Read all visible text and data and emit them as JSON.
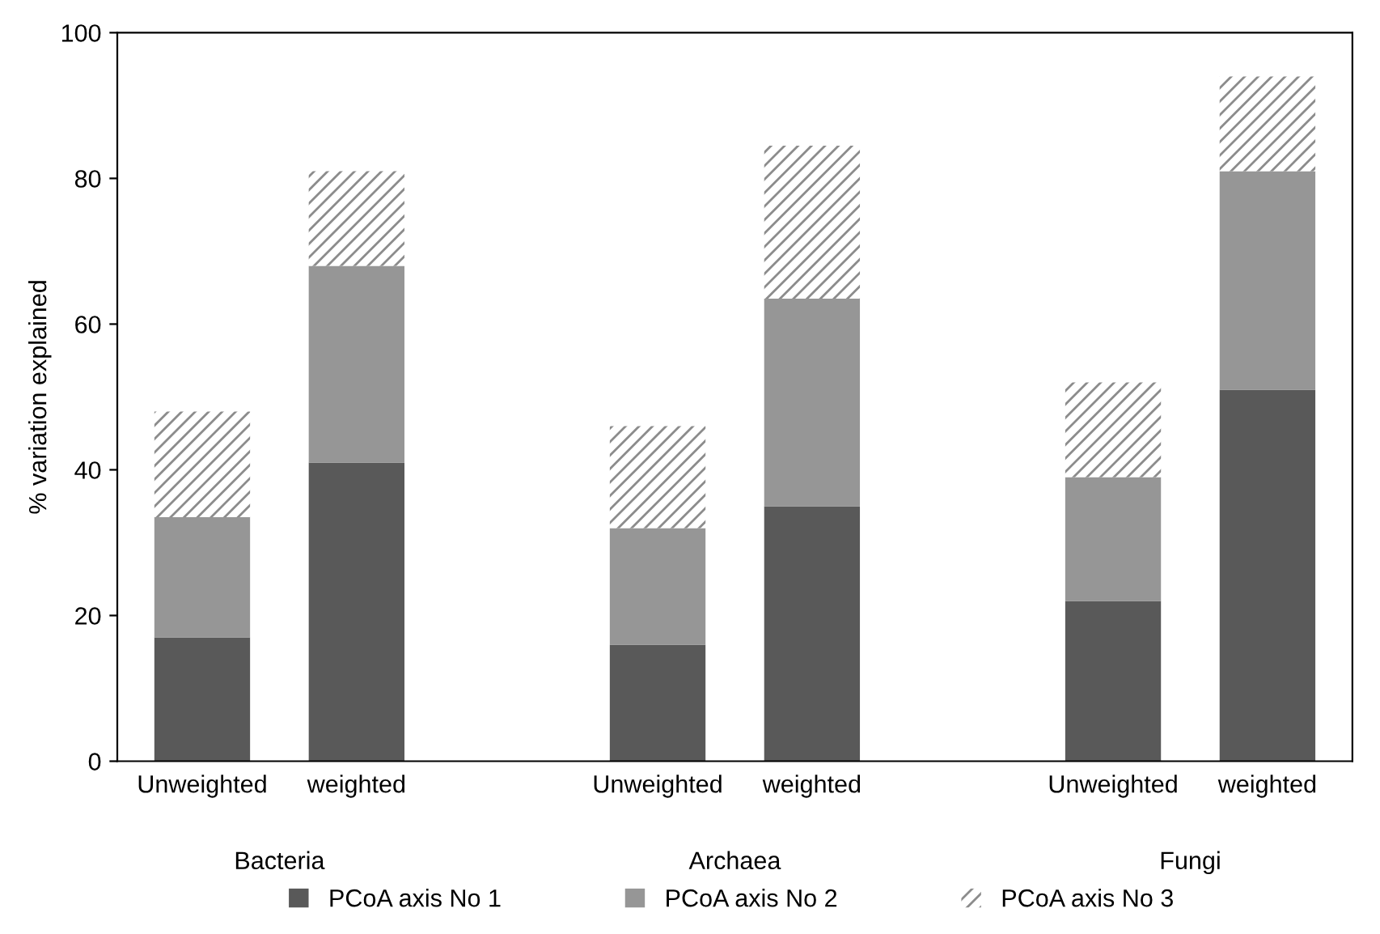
{
  "chart_data": {
    "type": "bar",
    "stacked": true,
    "ylabel": "% variation explained",
    "categories": [
      "Unweighted",
      "weighted",
      "Unweighted",
      "weighted",
      "Unweighted",
      "weighted"
    ],
    "annotations": [
      "Bacteria",
      "Archaea",
      "Fungi"
    ],
    "series": [
      {
        "name": "PCoA axis No 1",
        "color": "#595959",
        "values": [
          17,
          41,
          16,
          35,
          22,
          51
        ]
      },
      {
        "name": "PCoA axis No 2",
        "color": "#969696",
        "values": [
          16.5,
          27,
          16,
          28.5,
          17,
          30
        ]
      },
      {
        "name": "PCoA axis No 3",
        "color": "#ffffff",
        "values": [
          14.5,
          13,
          14,
          21,
          13,
          13
        ]
      }
    ],
    "ylim": [
      0,
      100
    ],
    "yticks": [
      0,
      20,
      40,
      60,
      80,
      100
    ],
    "grid": false,
    "legend": "bottom"
  }
}
